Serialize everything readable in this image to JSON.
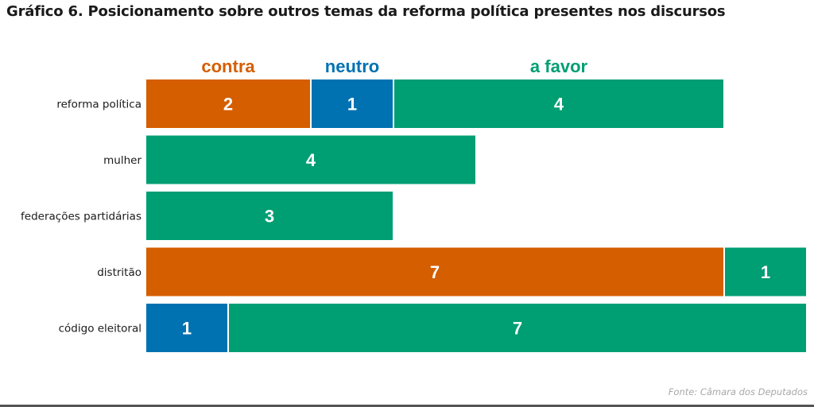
{
  "chart_data": {
    "type": "bar",
    "orientation": "horizontal",
    "stacked": true,
    "title": "Gráfico 6. Posicionamento sobre outros temas da reforma política presentes nos discursos",
    "categories": [
      "reforma política",
      "mulher",
      "federações partidárias",
      "distritão",
      "código eleitoral"
    ],
    "series": [
      {
        "name": "contra",
        "color": "#d55e00",
        "values": [
          2,
          0,
          0,
          7,
          0
        ]
      },
      {
        "name": "neutro",
        "color": "#0072b2",
        "values": [
          1,
          0,
          0,
          0,
          1
        ]
      },
      {
        "name": "a favor",
        "color": "#009e73",
        "values": [
          4,
          4,
          3,
          1,
          7
        ]
      }
    ],
    "xlim": [
      0,
      8
    ],
    "grid": false,
    "legend": "top",
    "source": "Fonte: Câmara dos Deputados"
  }
}
